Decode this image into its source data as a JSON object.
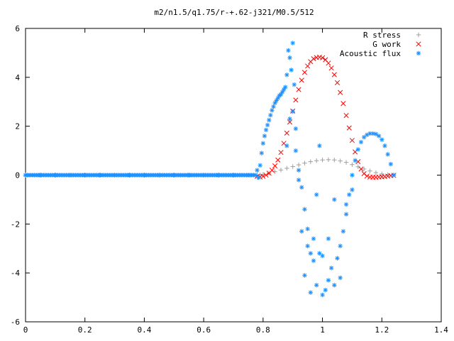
{
  "chart_data": {
    "type": "scatter",
    "title": "m2/n1.5/q1.75/r-+.62-j321/M0.5/512",
    "xlabel": "",
    "ylabel": "",
    "xlim": [
      0,
      1.4
    ],
    "ylim": [
      -6,
      6
    ],
    "xticks": [
      0,
      0.2,
      0.4,
      0.6,
      0.8,
      1,
      1.2,
      1.4
    ],
    "yticks": [
      -6,
      -4,
      -2,
      0,
      2,
      4,
      6
    ],
    "grid": false,
    "legend_position": "top-right",
    "series": [
      {
        "name": "R stress",
        "marker": "+",
        "color": "#a0a0a0",
        "x": [
          0.0,
          0.05,
          0.1,
          0.15,
          0.2,
          0.25,
          0.3,
          0.35,
          0.4,
          0.45,
          0.5,
          0.55,
          0.6,
          0.65,
          0.7,
          0.75,
          0.78,
          0.79,
          0.8,
          0.82,
          0.84,
          0.86,
          0.88,
          0.9,
          0.92,
          0.94,
          0.96,
          0.98,
          1.0,
          1.02,
          1.04,
          1.06,
          1.08,
          1.1,
          1.12,
          1.14,
          1.16,
          1.18,
          1.2,
          1.22,
          1.24
        ],
        "y": [
          0,
          0,
          0,
          0,
          0,
          0,
          0,
          0,
          0,
          0,
          0,
          0,
          0,
          0,
          0,
          0,
          0,
          0.01,
          0.03,
          0.08,
          0.14,
          0.21,
          0.28,
          0.35,
          0.42,
          0.49,
          0.55,
          0.59,
          0.62,
          0.63,
          0.62,
          0.58,
          0.52,
          0.43,
          0.34,
          0.25,
          0.17,
          0.1,
          0.05,
          0.02,
          0.01
        ]
      },
      {
        "name": "G work",
        "marker": "x",
        "color": "#ff0000",
        "x": [
          0.78,
          0.79,
          0.8,
          0.81,
          0.82,
          0.83,
          0.84,
          0.85,
          0.86,
          0.87,
          0.88,
          0.89,
          0.9,
          0.91,
          0.92,
          0.93,
          0.94,
          0.95,
          0.96,
          0.97,
          0.98,
          0.99,
          1.0,
          1.01,
          1.02,
          1.03,
          1.04,
          1.05,
          1.06,
          1.07,
          1.08,
          1.09,
          1.1,
          1.11,
          1.12,
          1.13,
          1.14,
          1.15,
          1.16,
          1.17,
          1.18,
          1.19,
          1.2,
          1.21,
          1.22,
          1.23,
          1.24
        ],
        "y": [
          -0.05,
          -0.08,
          -0.05,
          0.0,
          0.08,
          0.2,
          0.38,
          0.62,
          0.93,
          1.3,
          1.72,
          2.17,
          2.62,
          3.07,
          3.5,
          3.88,
          4.2,
          4.46,
          4.64,
          4.76,
          4.81,
          4.82,
          4.8,
          4.72,
          4.58,
          4.38,
          4.11,
          3.78,
          3.38,
          2.93,
          2.44,
          1.93,
          1.42,
          0.95,
          0.55,
          0.25,
          0.06,
          -0.04,
          -0.08,
          -0.09,
          -0.09,
          -0.08,
          -0.07,
          -0.06,
          -0.04,
          -0.02,
          -0.01
        ]
      },
      {
        "name": "Acoustic flux",
        "marker": "*",
        "color": "#1e90ff",
        "x": [
          0.0,
          0.05,
          0.1,
          0.15,
          0.2,
          0.25,
          0.3,
          0.35,
          0.4,
          0.45,
          0.5,
          0.55,
          0.6,
          0.65,
          0.7,
          0.75,
          0.78,
          0.785,
          0.79,
          0.795,
          0.8,
          0.805,
          0.81,
          0.815,
          0.82,
          0.825,
          0.83,
          0.835,
          0.84,
          0.845,
          0.85,
          0.855,
          0.86,
          0.865,
          0.87,
          0.875,
          0.88,
          0.885,
          0.89,
          0.895,
          0.9,
          0.905,
          0.91,
          0.92,
          0.93,
          0.94,
          0.95,
          0.96,
          0.97,
          0.98,
          0.99,
          1.0,
          1.01,
          1.02,
          1.03,
          1.04,
          1.05,
          1.06,
          1.07,
          1.08,
          1.09,
          1.1,
          1.11,
          1.12,
          1.13,
          1.14,
          1.15,
          1.16,
          1.17,
          1.18,
          1.19,
          1.2,
          1.21,
          1.22,
          1.23,
          1.24,
          0.88,
          0.89,
          0.9,
          0.91,
          0.92,
          0.93,
          0.94,
          0.95,
          0.96,
          0.97,
          0.98,
          0.99,
          1.0,
          1.02,
          1.04,
          1.06,
          1.08,
          1.1
        ],
        "y": [
          0,
          0,
          0,
          0,
          0,
          0,
          0,
          0,
          0,
          0,
          0,
          0,
          0,
          0,
          0,
          0,
          0.2,
          -0.1,
          0.4,
          0.9,
          1.3,
          1.6,
          1.85,
          2.05,
          2.25,
          2.45,
          2.65,
          2.8,
          2.95,
          3.05,
          3.15,
          3.25,
          3.3,
          3.4,
          3.5,
          3.6,
          4.1,
          5.1,
          4.8,
          4.3,
          5.4,
          3.7,
          1.9,
          -0.2,
          -2.3,
          -4.1,
          -2.9,
          -4.8,
          -3.5,
          -4.5,
          -3.2,
          -4.9,
          -4.7,
          -4.3,
          -3.8,
          -4.5,
          -3.4,
          -2.9,
          -2.3,
          -1.6,
          -0.8,
          0.0,
          0.6,
          1.05,
          1.35,
          1.55,
          1.65,
          1.7,
          1.7,
          1.68,
          1.6,
          1.45,
          1.2,
          0.85,
          0.45,
          0.0,
          1.2,
          2.3,
          2.6,
          1.0,
          0.2,
          -0.5,
          -1.4,
          -2.2,
          -3.2,
          -2.6,
          -0.8,
          1.2,
          -3.3,
          -2.6,
          -1.0,
          -4.2,
          -1.2,
          -0.6
        ]
      }
    ]
  }
}
